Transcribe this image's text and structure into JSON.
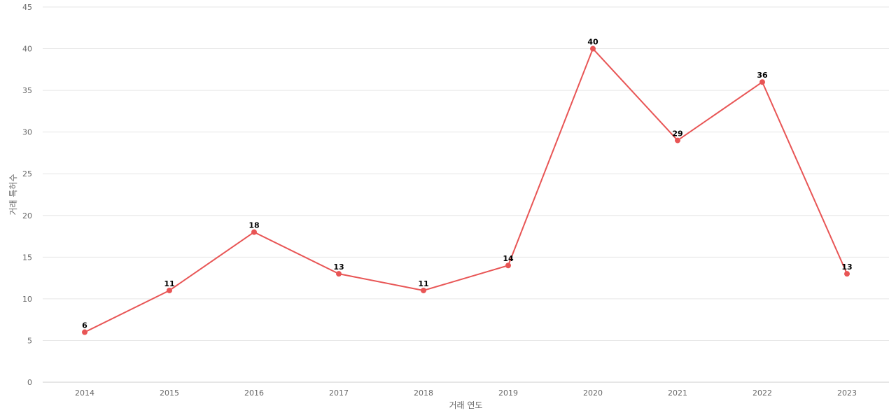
{
  "chart_data": {
    "type": "line",
    "title": "",
    "xlabel": "거래 연도",
    "ylabel": "거래 특허수",
    "categories": [
      "2014",
      "2015",
      "2016",
      "2017",
      "2018",
      "2019",
      "2020",
      "2021",
      "2022",
      "2023"
    ],
    "series": [
      {
        "values": [
          6,
          11,
          18,
          13,
          11,
          14,
          40,
          29,
          36,
          13
        ]
      }
    ],
    "ylim": [
      0,
      45
    ],
    "yticks": [
      0,
      5,
      10,
      15,
      20,
      25,
      30,
      35,
      40,
      45
    ],
    "grid": true,
    "data_labels": true,
    "colors": {
      "line": "#e85555",
      "point": "#e85555"
    }
  }
}
